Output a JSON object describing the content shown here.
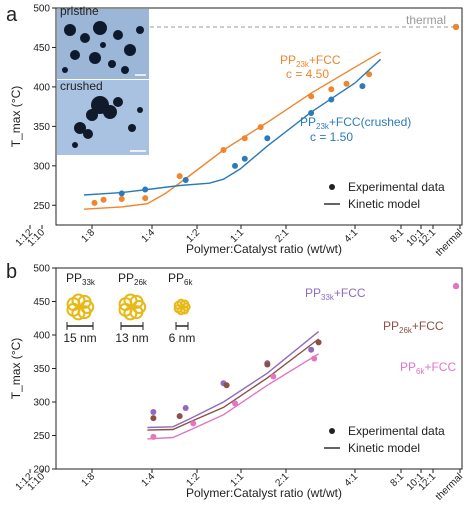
{
  "chart_data": [
    {
      "panel_label": "a",
      "type": "scatter",
      "xlabel": "Polymer:Catalyst ratio (wt/wt)",
      "ylabel": "T_max (°C)",
      "ylim": [
        225,
        500
      ],
      "yticks": [
        250,
        300,
        350,
        400,
        450,
        500
      ],
      "xtick_labels": [
        "1:12",
        "1:10",
        "1:8",
        "1:4",
        "1:2",
        "1:1",
        "2:1",
        "4:1",
        "8:1",
        "10:1",
        "12:1",
        "thermal"
      ],
      "x_scale": "log2",
      "grid": false,
      "legend_position": "lower-right",
      "legend": {
        "points": "Experimental data",
        "line": "Kinetic model"
      },
      "thermal_value": 476,
      "thermal_label": "thermal",
      "inset_labels": [
        "pristine",
        "crushed"
      ],
      "series": [
        {
          "name": "PP23k+FCC",
          "label_main": "PP",
          "label_sub": "23k",
          "label_suffix": "+FCC",
          "param_text": "c = 4.50",
          "color": "#f0852d",
          "points": [
            {
              "x": 0.13,
              "y": 253
            },
            {
              "x": 0.15,
              "y": 257
            },
            {
              "x": 0.2,
              "y": 258
            },
            {
              "x": 0.29,
              "y": 259
            },
            {
              "x": 0.5,
              "y": 287
            },
            {
              "x": 1.0,
              "y": 320
            },
            {
              "x": 1.4,
              "y": 335
            },
            {
              "x": 1.8,
              "y": 349
            },
            {
              "x": 4.0,
              "y": 388
            },
            {
              "x": 5.5,
              "y": 397
            },
            {
              "x": 7.0,
              "y": 404
            },
            {
              "x": 10.0,
              "y": 416
            }
          ],
          "model": [
            {
              "x": 0.11,
              "y": 245
            },
            {
              "x": 0.2,
              "y": 248
            },
            {
              "x": 0.3,
              "y": 252
            },
            {
              "x": 0.4,
              "y": 265
            },
            {
              "x": 0.6,
              "y": 289
            },
            {
              "x": 1.0,
              "y": 320
            },
            {
              "x": 2.0,
              "y": 355
            },
            {
              "x": 4.0,
              "y": 392
            },
            {
              "x": 8.0,
              "y": 425
            },
            {
              "x": 12.0,
              "y": 444
            }
          ]
        },
        {
          "name": "PP23k+FCC(crushed)",
          "label_main": "PP",
          "label_sub": "23k",
          "label_suffix": "+FCC(crushed)",
          "param_text": "c = 1.50",
          "color": "#2b7bba",
          "points": [
            {
              "x": 0.2,
              "y": 265
            },
            {
              "x": 0.29,
              "y": 270
            },
            {
              "x": 0.55,
              "y": 282
            },
            {
              "x": 1.2,
              "y": 300
            },
            {
              "x": 1.4,
              "y": 309
            },
            {
              "x": 2.0,
              "y": 335
            },
            {
              "x": 4.0,
              "y": 367
            },
            {
              "x": 5.5,
              "y": 384
            },
            {
              "x": 9.0,
              "y": 401
            }
          ],
          "model": [
            {
              "x": 0.11,
              "y": 263
            },
            {
              "x": 0.2,
              "y": 266
            },
            {
              "x": 0.3,
              "y": 270
            },
            {
              "x": 0.5,
              "y": 275
            },
            {
              "x": 0.8,
              "y": 278
            },
            {
              "x": 1.0,
              "y": 283
            },
            {
              "x": 1.3,
              "y": 296
            },
            {
              "x": 2.0,
              "y": 325
            },
            {
              "x": 4.0,
              "y": 368
            },
            {
              "x": 8.0,
              "y": 405
            },
            {
              "x": 12.0,
              "y": 435
            }
          ]
        }
      ]
    },
    {
      "panel_label": "b",
      "type": "scatter",
      "xlabel": "Polymer:Catalyst ratio (wt/wt)",
      "ylabel": "T_max (°C)",
      "ylim": [
        200,
        500
      ],
      "yticks": [
        200,
        250,
        300,
        350,
        400,
        450,
        500
      ],
      "xtick_labels": [
        "1:12",
        "1:10",
        "1:8",
        "1:4",
        "1:2",
        "1:1",
        "2:1",
        "4:1",
        "8:1",
        "10:1",
        "12:1",
        "thermal"
      ],
      "x_scale": "log2",
      "grid": false,
      "legend_position": "lower-right",
      "legend": {
        "points": "Experimental data",
        "line": "Kinetic model"
      },
      "thermal_value": 473,
      "inset_labels": [
        {
          "main": "PP",
          "sub": "33k",
          "scale": "15 nm"
        },
        {
          "main": "PP",
          "sub": "26k",
          "scale": "13 nm"
        },
        {
          "main": "PP",
          "sub": "6k",
          "scale": "6 nm"
        }
      ],
      "series": [
        {
          "name": "PP33k+FCC",
          "label_main": "PP",
          "label_sub": "33k",
          "label_suffix": "+FCC",
          "color": "#8e6ac0",
          "points": [
            {
              "x": 0.33,
              "y": 285
            },
            {
              "x": 0.55,
              "y": 291
            },
            {
              "x": 1.0,
              "y": 328
            },
            {
              "x": 2.0,
              "y": 358
            },
            {
              "x": 4.0,
              "y": 378
            }
          ],
          "model": [
            {
              "x": 0.3,
              "y": 262
            },
            {
              "x": 0.45,
              "y": 263
            },
            {
              "x": 0.6,
              "y": 276
            },
            {
              "x": 1.0,
              "y": 300
            },
            {
              "x": 2.0,
              "y": 343
            },
            {
              "x": 4.5,
              "y": 405
            }
          ]
        },
        {
          "name": "PP26k+FCC",
          "label_main": "PP",
          "label_sub": "26k",
          "label_suffix": "+FCC",
          "color": "#8b5046",
          "points": [
            {
              "x": 0.33,
              "y": 276
            },
            {
              "x": 0.5,
              "y": 279
            },
            {
              "x": 1.05,
              "y": 325
            },
            {
              "x": 2.0,
              "y": 356
            },
            {
              "x": 4.5,
              "y": 389
            }
          ],
          "model": [
            {
              "x": 0.3,
              "y": 258
            },
            {
              "x": 0.45,
              "y": 259
            },
            {
              "x": 0.6,
              "y": 271
            },
            {
              "x": 1.0,
              "y": 292
            },
            {
              "x": 2.0,
              "y": 336
            },
            {
              "x": 4.5,
              "y": 394
            }
          ]
        },
        {
          "name": "PP6k+FCC",
          "label_main": "PP",
          "label_sub": "6k",
          "label_suffix": "+FCC",
          "color": "#e077c0",
          "points": [
            {
              "x": 0.33,
              "y": 248
            },
            {
              "x": 0.62,
              "y": 268
            },
            {
              "x": 1.2,
              "y": 298
            },
            {
              "x": 2.2,
              "y": 338
            },
            {
              "x": 4.2,
              "y": 365
            }
          ],
          "model": [
            {
              "x": 0.3,
              "y": 245
            },
            {
              "x": 0.45,
              "y": 247
            },
            {
              "x": 0.6,
              "y": 259
            },
            {
              "x": 1.0,
              "y": 281
            },
            {
              "x": 2.0,
              "y": 325
            },
            {
              "x": 4.5,
              "y": 372
            }
          ]
        }
      ]
    }
  ]
}
